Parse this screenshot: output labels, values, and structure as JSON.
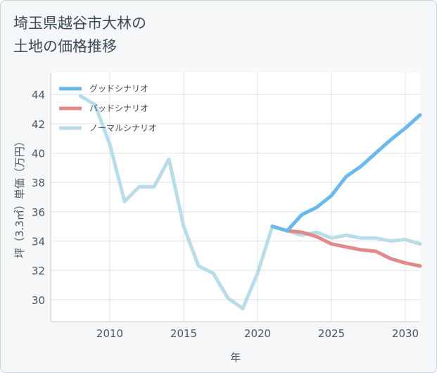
{
  "title": {
    "line1": "埼玉県越谷市大林の",
    "line2": "土地の価格推移"
  },
  "chart_data": {
    "type": "line",
    "title": "埼玉県越谷市大林の土地の価格推移",
    "xlabel": "年",
    "ylabel": "坪（3.3㎡）単価（万円）",
    "xlim": [
      2006,
      2031
    ],
    "ylim": [
      28.5,
      45.5
    ],
    "xticks": [
      2010,
      2015,
      2020,
      2025,
      2030
    ],
    "yticks": [
      30,
      32,
      34,
      36,
      38,
      40,
      42,
      44
    ],
    "grid": true,
    "legend_position": "top-left",
    "series": [
      {
        "name": "グッドシナリオ",
        "color": "#6bb8ec",
        "x": [
          2021,
          2022,
          2023,
          2024,
          2025,
          2026,
          2027,
          2028,
          2029,
          2030,
          2031
        ],
        "y": [
          35.0,
          34.7,
          35.8,
          36.3,
          37.1,
          38.4,
          39.1,
          40.0,
          40.9,
          41.7,
          42.6
        ]
      },
      {
        "name": "バッドシナリオ",
        "color": "#e08a8c",
        "x": [
          2021,
          2022,
          2023,
          2024,
          2025,
          2026,
          2027,
          2028,
          2029,
          2030,
          2031
        ],
        "y": [
          35.0,
          34.7,
          34.6,
          34.3,
          33.8,
          33.6,
          33.4,
          33.3,
          32.8,
          32.5,
          32.3
        ]
      },
      {
        "name": "ノーマルシナリオ",
        "color": "#b9dce9",
        "x": [
          2008,
          2009,
          2010,
          2011,
          2012,
          2013,
          2014,
          2015,
          2016,
          2017,
          2018,
          2019,
          2020,
          2021,
          2022,
          2023,
          2024,
          2025,
          2026,
          2027,
          2028,
          2029,
          2030,
          2031
        ],
        "y": [
          43.9,
          43.3,
          40.6,
          36.7,
          37.7,
          37.7,
          39.6,
          35.0,
          32.3,
          31.8,
          30.1,
          29.4,
          31.8,
          35.0,
          34.7,
          34.4,
          34.6,
          34.2,
          34.4,
          34.2,
          34.2,
          34.0,
          34.1,
          33.8
        ]
      }
    ]
  }
}
